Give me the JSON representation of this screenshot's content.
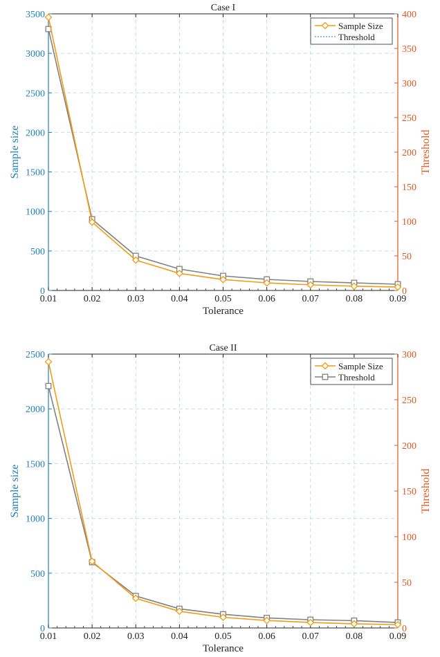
{
  "colors": {
    "left_axis": "#1f7fc0",
    "right_axis": "#e0581e",
    "sample_size": "#f39c12",
    "threshold": "#808080",
    "grid": "#c9dbe8",
    "axis": "#222222"
  },
  "chart_data": [
    {
      "type": "line",
      "title": "Case I",
      "xlabel": "Tolerance",
      "ylabel_left": "Sample size",
      "ylabel_right": "Threshold",
      "x": [
        0.01,
        0.02,
        0.03,
        0.04,
        0.05,
        0.06,
        0.07,
        0.08,
        0.09
      ],
      "x_ticks": [
        "0.01",
        "0.02",
        "0.03",
        "0.04",
        "0.05",
        "0.06",
        "0.07",
        "0.08",
        "0.09"
      ],
      "xlim": [
        0.01,
        0.09
      ],
      "ylim_left": [
        0,
        3500
      ],
      "ylim_right": [
        0,
        400
      ],
      "yticks_left": [
        "0",
        "500",
        "1000",
        "1500",
        "2000",
        "2500",
        "3000",
        "3500"
      ],
      "yticks_right": [
        "0",
        "50",
        "100",
        "150",
        "200",
        "250",
        "300",
        "350",
        "400"
      ],
      "grid": true,
      "legend_position": "top-right",
      "series": [
        {
          "name": "Sample Size",
          "axis": "left",
          "marker": "diamond",
          "line": "solid",
          "values": [
            3457,
            864,
            384,
            216,
            138,
            96,
            71,
            54,
            43
          ]
        },
        {
          "name": "Threshold",
          "axis": "right",
          "marker": "square",
          "line": "solid",
          "values": [
            378,
            103,
            50,
            31,
            21,
            16,
            13,
            11,
            9
          ]
        }
      ],
      "legend": [
        {
          "name": "Sample Size",
          "marker": "diamond",
          "line": "solid"
        },
        {
          "name": "Threshold",
          "marker": "none",
          "line": "dotted"
        }
      ]
    },
    {
      "type": "line",
      "title": "Case II",
      "xlabel": "Tolerance",
      "ylabel_left": "Sample size",
      "ylabel_right": "Threshold",
      "x": [
        0.01,
        0.02,
        0.03,
        0.04,
        0.05,
        0.06,
        0.07,
        0.08,
        0.09
      ],
      "x_ticks": [
        "0.01",
        "0.02",
        "0.03",
        "0.04",
        "0.05",
        "0.06",
        "0.07",
        "0.08",
        "0.09"
      ],
      "xlim": [
        0.01,
        0.09
      ],
      "ylim_left": [
        0,
        2500
      ],
      "ylim_right": [
        0,
        300
      ],
      "yticks_left": [
        "0",
        "500",
        "1000",
        "1500",
        "2000",
        "2500"
      ],
      "yticks_right": [
        "0",
        "50",
        "100",
        "150",
        "200",
        "250",
        "300"
      ],
      "grid": true,
      "legend_position": "top-right",
      "series": [
        {
          "name": "Sample Size",
          "axis": "left",
          "marker": "diamond",
          "line": "solid",
          "values": [
            2430,
            608,
            270,
            152,
            97,
            68,
            50,
            38,
            30
          ]
        },
        {
          "name": "Threshold",
          "axis": "right",
          "marker": "square",
          "line": "solid",
          "values": [
            265,
            72,
            35,
            21,
            15,
            11,
            9,
            8,
            6
          ]
        }
      ],
      "legend": [
        {
          "name": "Sample Size",
          "marker": "diamond",
          "line": "solid"
        },
        {
          "name": "Threshold",
          "marker": "square",
          "line": "solid"
        }
      ]
    }
  ]
}
